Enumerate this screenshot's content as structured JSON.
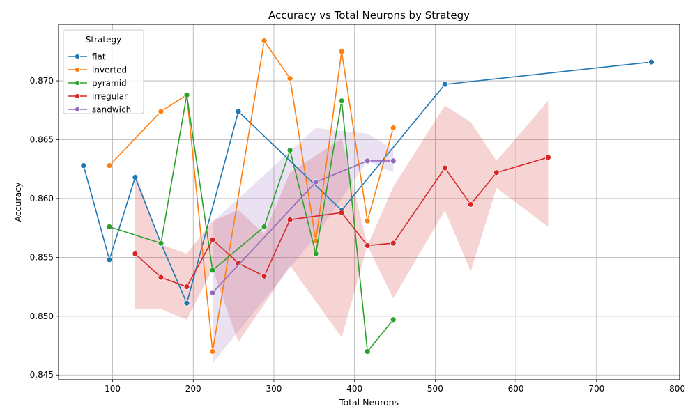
{
  "chart_data": {
    "type": "line",
    "title": "Accuracy vs Total Neurons by Strategy",
    "xlabel": "Total Neurons",
    "ylabel": "Accuracy",
    "xlim": [
      33,
      803
    ],
    "ylim": [
      0.8446,
      0.8748
    ],
    "xticks": [
      100,
      200,
      300,
      400,
      500,
      600,
      700,
      800
    ],
    "xtick_labels": [
      "100",
      "200",
      "300",
      "400",
      "500",
      "600",
      "700",
      "800"
    ],
    "yticks": [
      0.845,
      0.85,
      0.855,
      0.86,
      0.865,
      0.87
    ],
    "ytick_labels": [
      "0.845",
      "0.850",
      "0.855",
      "0.860",
      "0.865",
      "0.870"
    ],
    "grid": true,
    "legend": {
      "title": "Strategy",
      "placement": "upper-left"
    },
    "series": [
      {
        "name": "flat",
        "color": "#1f77b4",
        "x": [
          64,
          96,
          128,
          160,
          192,
          256,
          384,
          512,
          768
        ],
        "y": [
          0.8628,
          0.8548,
          0.8618,
          0.8562,
          0.8511,
          0.8674,
          0.859,
          0.8697,
          0.8716
        ]
      },
      {
        "name": "inverted",
        "color": "#ff7f0e",
        "x": [
          96,
          160,
          192,
          224,
          288,
          320,
          352,
          384,
          416,
          448
        ],
        "y": [
          0.8628,
          0.8674,
          0.8688,
          0.847,
          0.8734,
          0.8702,
          0.8564,
          0.8725,
          0.8581,
          0.866
        ]
      },
      {
        "name": "pyramid",
        "color": "#2ca02c",
        "x": [
          96,
          160,
          192,
          224,
          288,
          320,
          352,
          384,
          416,
          448
        ],
        "y": [
          0.8576,
          0.8562,
          0.8688,
          0.8539,
          0.8576,
          0.8641,
          0.8553,
          0.8683,
          0.847,
          0.8497
        ]
      },
      {
        "name": "irregular",
        "color": "#d62728",
        "x": [
          128,
          160,
          192,
          224,
          256,
          288,
          320,
          384,
          416,
          448,
          512,
          544,
          576,
          640
        ],
        "y": [
          0.8553,
          0.8533,
          0.8525,
          0.8565,
          0.8545,
          0.8534,
          0.8582,
          0.8588,
          0.856,
          0.8562,
          0.8626,
          0.8595,
          0.8622,
          0.8635
        ],
        "ci_low": [
          0.8506,
          0.8506,
          0.8497,
          0.854,
          0.8478,
          0.851,
          0.8543,
          0.8482,
          0.856,
          0.8515,
          0.859,
          0.8538,
          0.8609,
          0.8576
        ],
        "ci_high": [
          0.8623,
          0.8561,
          0.8553,
          0.8581,
          0.859,
          0.857,
          0.8622,
          0.8651,
          0.856,
          0.861,
          0.8679,
          0.8665,
          0.8632,
          0.8683
        ]
      },
      {
        "name": "sandwich",
        "color": "#9467bd",
        "x": [
          224,
          352,
          416,
          448
        ],
        "y": [
          0.852,
          0.8614,
          0.8632,
          0.8632
        ],
        "ci_low": [
          0.846,
          0.8568,
          0.8632,
          0.8622
        ],
        "ci_high": [
          0.858,
          0.866,
          0.8655,
          0.8642
        ]
      }
    ]
  }
}
